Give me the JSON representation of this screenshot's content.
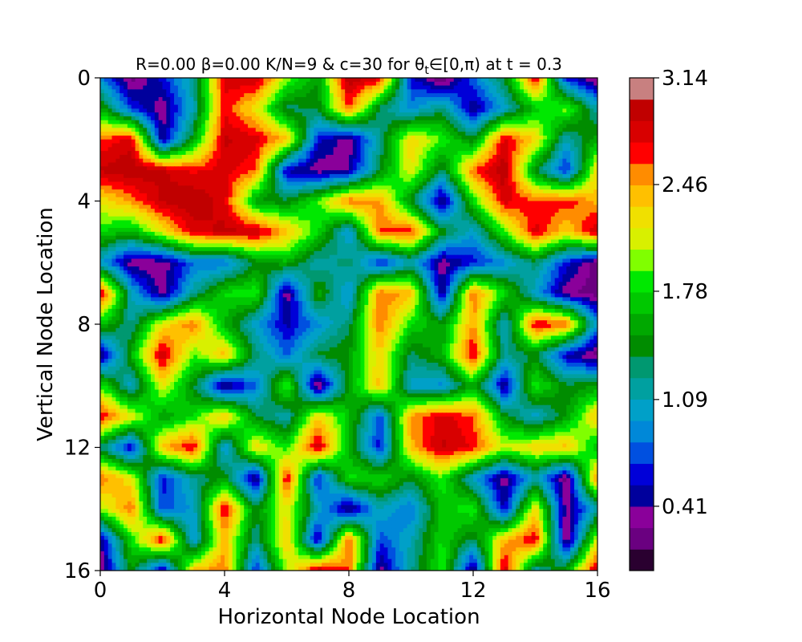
{
  "chart_data": {
    "type": "heatmap",
    "title": "R=0.00 β=0.00 K/N=9 & c=30 for θ",
    "title_subscript": "t",
    "title_tail": "∈[0,π) at t = 0.3",
    "xlabel": "Horizontal Node Location",
    "ylabel": "Vertical Node Location",
    "xlim": [
      0,
      16
    ],
    "ylim": [
      16,
      0
    ],
    "x_ticks": [
      "0",
      "4",
      "8",
      "12",
      "16"
    ],
    "y_ticks": [
      "0",
      "4",
      "8",
      "12",
      "16"
    ],
    "colorbar": {
      "min": 0,
      "max": 3.14,
      "ticks": [
        "3.14",
        "2.46",
        "1.78",
        "1.09",
        "0.41"
      ],
      "tick_values": [
        3.14,
        2.46,
        1.78,
        1.09,
        0.41
      ],
      "colors": [
        "#2a0030",
        "#6a0080",
        "#8a009a",
        "#00009c",
        "#0000d8",
        "#0050e0",
        "#0088d8",
        "#00a0c8",
        "#00a0a0",
        "#009870",
        "#008c00",
        "#00a800",
        "#00c800",
        "#00e800",
        "#80ff00",
        "#d8f000",
        "#f0e000",
        "#ffc000",
        "#ff8c00",
        "#ff0000",
        "#d80000",
        "#c00000",
        "#c88080"
      ]
    },
    "grid_size": 17,
    "values": [
      [
        0.9,
        0.2,
        0.6,
        1.2,
        2.8,
        2.9,
        2.0,
        1.5,
        3.0,
        2.8,
        0.6,
        0.1,
        0.8,
        1.4,
        2.8,
        0.6,
        0.2
      ],
      [
        1.6,
        0.7,
        0.3,
        1.1,
        2.7,
        2.2,
        1.3,
        1.4,
        2.6,
        1.3,
        0.9,
        1.3,
        0.4,
        1.0,
        1.7,
        2.0,
        1.1
      ],
      [
        2.6,
        2.8,
        0.4,
        1.5,
        2.9,
        2.8,
        2.4,
        0.6,
        0.3,
        1.2,
        2.3,
        1.9,
        1.4,
        2.8,
        2.3,
        1.1,
        1.6
      ],
      [
        2.9,
        3.0,
        2.9,
        2.7,
        2.8,
        2.6,
        0.5,
        0.3,
        0.4,
        1.4,
        2.2,
        1.3,
        2.6,
        3.0,
        1.4,
        0.6,
        2.3
      ],
      [
        2.2,
        2.5,
        2.9,
        3.0,
        2.8,
        1.5,
        1.4,
        1.9,
        2.6,
        2.5,
        1.4,
        0.3,
        1.8,
        2.8,
        2.6,
        2.7,
        2.4
      ],
      [
        1.8,
        1.6,
        2.2,
        2.8,
        2.9,
        2.9,
        2.4,
        1.8,
        0.9,
        2.6,
        2.7,
        1.5,
        1.0,
        1.9,
        2.8,
        2.3,
        2.9
      ],
      [
        1.0,
        0.3,
        0.3,
        0.8,
        0.8,
        1.4,
        1.6,
        1.1,
        1.3,
        0.6,
        1.1,
        0.3,
        0.6,
        0.9,
        1.3,
        0.6,
        0.2
      ],
      [
        2.9,
        1.1,
        0.3,
        1.2,
        1.8,
        1.9,
        0.3,
        1.6,
        0.9,
        2.6,
        2.4,
        0.4,
        2.6,
        1.8,
        1.0,
        0.3,
        0.2
      ],
      [
        1.7,
        1.2,
        2.2,
        2.6,
        1.6,
        1.0,
        0.5,
        0.9,
        1.3,
        2.6,
        1.8,
        1.5,
        2.5,
        1.0,
        2.8,
        2.6,
        0.9
      ],
      [
        0.3,
        1.6,
        2.9,
        1.9,
        2.4,
        1.3,
        0.8,
        1.4,
        1.5,
        2.3,
        1.3,
        1.6,
        2.8,
        1.2,
        1.4,
        0.5,
        0.2
      ],
      [
        1.9,
        1.0,
        2.2,
        1.4,
        0.3,
        0.8,
        2.0,
        0.2,
        1.5,
        2.4,
        1.0,
        0.9,
        1.6,
        0.4,
        1.9,
        1.4,
        1.5
      ],
      [
        2.8,
        2.2,
        1.5,
        1.8,
        2.4,
        1.4,
        1.1,
        2.3,
        1.7,
        0.7,
        2.5,
        2.8,
        2.6,
        1.5,
        1.0,
        1.5,
        2.4
      ],
      [
        1.3,
        0.5,
        2.4,
        2.8,
        0.9,
        2.3,
        1.8,
        2.9,
        1.6,
        0.6,
        2.4,
        2.9,
        2.7,
        2.1,
        2.3,
        2.4,
        1.6
      ],
      [
        2.6,
        2.2,
        0.6,
        1.2,
        1.5,
        0.3,
        2.8,
        0.6,
        1.8,
        1.8,
        1.4,
        1.9,
        1.0,
        0.3,
        1.1,
        0.2,
        2.6
      ],
      [
        2.0,
        2.6,
        0.7,
        1.0,
        2.8,
        1.4,
        2.2,
        1.1,
        0.3,
        1.1,
        0.8,
        1.7,
        1.9,
        0.5,
        2.3,
        0.3,
        1.1
      ],
      [
        0.4,
        1.8,
        2.8,
        0.9,
        2.4,
        1.2,
        2.4,
        0.4,
        2.6,
        0.7,
        1.1,
        1.8,
        1.3,
        2.4,
        2.8,
        0.2,
        2.2
      ],
      [
        0.2,
        1.5,
        0.4,
        2.4,
        2.6,
        0.6,
        2.0,
        2.9,
        2.6,
        0.3,
        1.2,
        1.9,
        0.3,
        2.9,
        1.1,
        1.6,
        2.9
      ]
    ]
  }
}
